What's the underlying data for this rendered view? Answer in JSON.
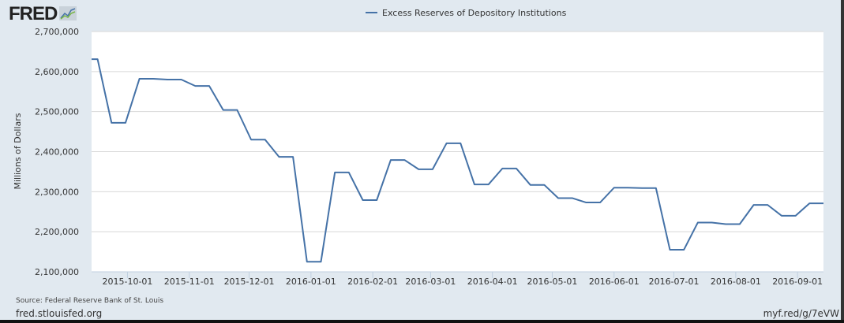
{
  "logo": "FRED",
  "footer": {
    "source": "Source: Federal Reserve Bank of St. Louis",
    "site": "fred.stlouisfed.org",
    "short_link": "myf.red/g/7eVW"
  },
  "colors": {
    "series": "#4572a7",
    "background": "#e1e9f0",
    "grid": "#d8d8d8"
  },
  "chart_data": {
    "type": "line",
    "title": "",
    "legend": [
      "Excess Reserves of Depository Institutions"
    ],
    "legend_position": "top-center",
    "xlabel": "",
    "ylabel": "Millions of Dollars",
    "ylim": [
      2100000,
      2700000
    ],
    "xlim": [
      "2015-09-13",
      "2016-09-14"
    ],
    "yticks": [
      2100000,
      2200000,
      2300000,
      2400000,
      2500000,
      2600000,
      2700000
    ],
    "ytick_labels": [
      "2,100,000",
      "2,200,000",
      "2,300,000",
      "2,400,000",
      "2,500,000",
      "2,600,000",
      "2,700,000"
    ],
    "xticks": [
      "2015-10-01",
      "2015-11-01",
      "2015-12-01",
      "2016-01-01",
      "2016-02-01",
      "2016-03-01",
      "2016-04-01",
      "2016-05-01",
      "2016-06-01",
      "2016-07-01",
      "2016-08-01",
      "2016-09-01"
    ],
    "grid": true,
    "series": [
      {
        "name": "Excess Reserves of Depository Institutions",
        "x": [
          "2015-09-16",
          "2015-09-23",
          "2015-09-30",
          "2015-10-07",
          "2015-10-14",
          "2015-10-21",
          "2015-10-28",
          "2015-11-04",
          "2015-11-11",
          "2015-11-18",
          "2015-11-25",
          "2015-12-02",
          "2015-12-09",
          "2015-12-16",
          "2015-12-23",
          "2015-12-30",
          "2016-01-06",
          "2016-01-13",
          "2016-01-20",
          "2016-01-27",
          "2016-02-03",
          "2016-02-10",
          "2016-02-17",
          "2016-02-24",
          "2016-03-02",
          "2016-03-09",
          "2016-03-16",
          "2016-03-23",
          "2016-03-30",
          "2016-04-06",
          "2016-04-13",
          "2016-04-20",
          "2016-04-27",
          "2016-05-04",
          "2016-05-11",
          "2016-05-18",
          "2016-05-25",
          "2016-06-01",
          "2016-06-08",
          "2016-06-15",
          "2016-06-22",
          "2016-06-29",
          "2016-07-06",
          "2016-07-13",
          "2016-07-20",
          "2016-07-27",
          "2016-08-03",
          "2016-08-10",
          "2016-08-17",
          "2016-08-24",
          "2016-08-31",
          "2016-09-07",
          "2016-09-14"
        ],
        "values": [
          2631000,
          2472000,
          2472000,
          2582000,
          2582000,
          2580000,
          2580000,
          2564000,
          2564000,
          2504000,
          2504000,
          2430000,
          2430000,
          2387000,
          2387000,
          2125000,
          2125000,
          2348000,
          2348000,
          2279000,
          2279000,
          2379000,
          2379000,
          2356000,
          2356000,
          2421000,
          2421000,
          2318000,
          2318000,
          2358000,
          2358000,
          2317000,
          2317000,
          2284000,
          2284000,
          2273000,
          2273000,
          2310000,
          2310000,
          2309000,
          2309000,
          2155000,
          2155000,
          2223000,
          2223000,
          2219000,
          2219000,
          2267000,
          2267000,
          2240000,
          2240000,
          2271000,
          2271000
        ]
      }
    ]
  }
}
